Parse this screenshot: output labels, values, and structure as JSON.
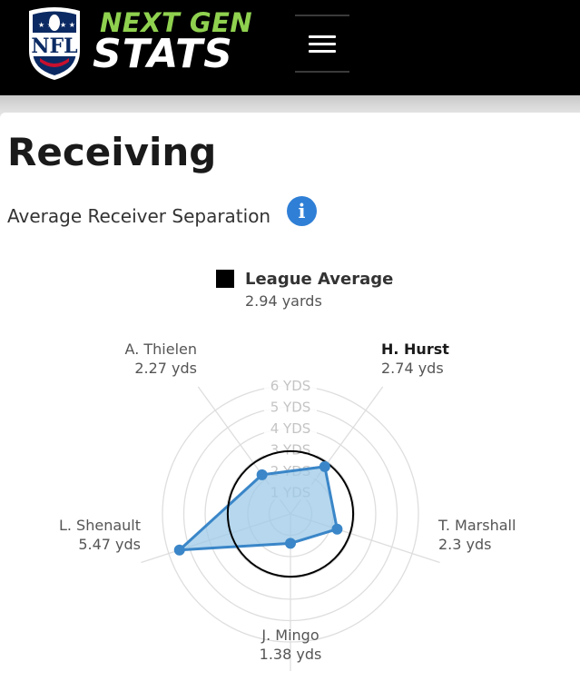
{
  "header": {
    "brand_top": "NEXT GEN",
    "brand_bottom": "STATS",
    "logo_text": "NFL",
    "menu_icon": "hamburger-menu-icon"
  },
  "page": {
    "title": "Receiving",
    "subtitle": "Average Receiver Separation",
    "info_icon": "info-icon",
    "info_glyph": "i"
  },
  "chart_data": {
    "type": "radar",
    "title": "",
    "legend": {
      "label": "League Average",
      "value_text": "2.94 yards",
      "color": "#000000"
    },
    "league_average": 2.94,
    "r_max": 6,
    "rings": [
      1,
      2,
      3,
      4,
      5,
      6
    ],
    "ring_labels": [
      "1 YDS",
      "2 YDS",
      "3 YDS",
      "4 YDS",
      "5 YDS",
      "6 YDS"
    ],
    "series_color": "#3a86c8",
    "series_fill": "#9ec9e8",
    "players": [
      {
        "name": "H. Hurst",
        "value": 2.74,
        "value_text": "2.74 yds",
        "angle": 36,
        "highlight": true
      },
      {
        "name": "T. Marshall",
        "value": 2.3,
        "value_text": "2.3 yds",
        "angle": 108,
        "highlight": false
      },
      {
        "name": "J. Mingo",
        "value": 1.38,
        "value_text": "1.38 yds",
        "angle": 180,
        "highlight": false
      },
      {
        "name": "L. Shenault",
        "value": 5.47,
        "value_text": "5.47 yds",
        "angle": 252,
        "highlight": false
      },
      {
        "name": "A. Thielen",
        "value": 2.27,
        "value_text": "2.27 yds",
        "angle": 324,
        "highlight": false
      }
    ]
  }
}
